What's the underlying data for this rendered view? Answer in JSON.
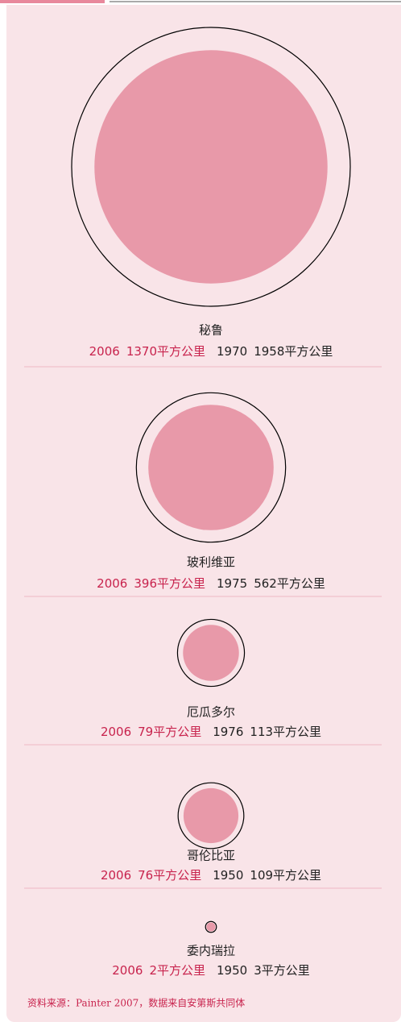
{
  "chart_data": {
    "type": "proportional-circle",
    "categories": [
      "秘鲁",
      "玻利维亚",
      "厄瓜多尔",
      "哥伦比亚",
      "委内瑞拉"
    ],
    "series": [
      {
        "color": "#e899a9",
        "text_color": "#c8234d",
        "years": [
          2006,
          2006,
          2006,
          2006,
          2006
        ],
        "values": [
          1370,
          396,
          79,
          76,
          2
        ],
        "value_labels": [
          "1370平方公里",
          "396平方公里",
          "79平方公里",
          "76平方公里",
          "2平方公里"
        ]
      },
      {
        "color": "#000000",
        "text_color": "#222222",
        "years": [
          1970,
          1975,
          1976,
          1950,
          1950
        ],
        "values": [
          1958,
          562,
          113,
          109,
          3
        ],
        "value_labels": [
          "1958平方公里",
          "562平方公里",
          "113平方公里",
          "109平方公里",
          "3平方公里"
        ]
      }
    ],
    "source": "资料来源：Painter 2007，数据来自安第斯共同体"
  }
}
